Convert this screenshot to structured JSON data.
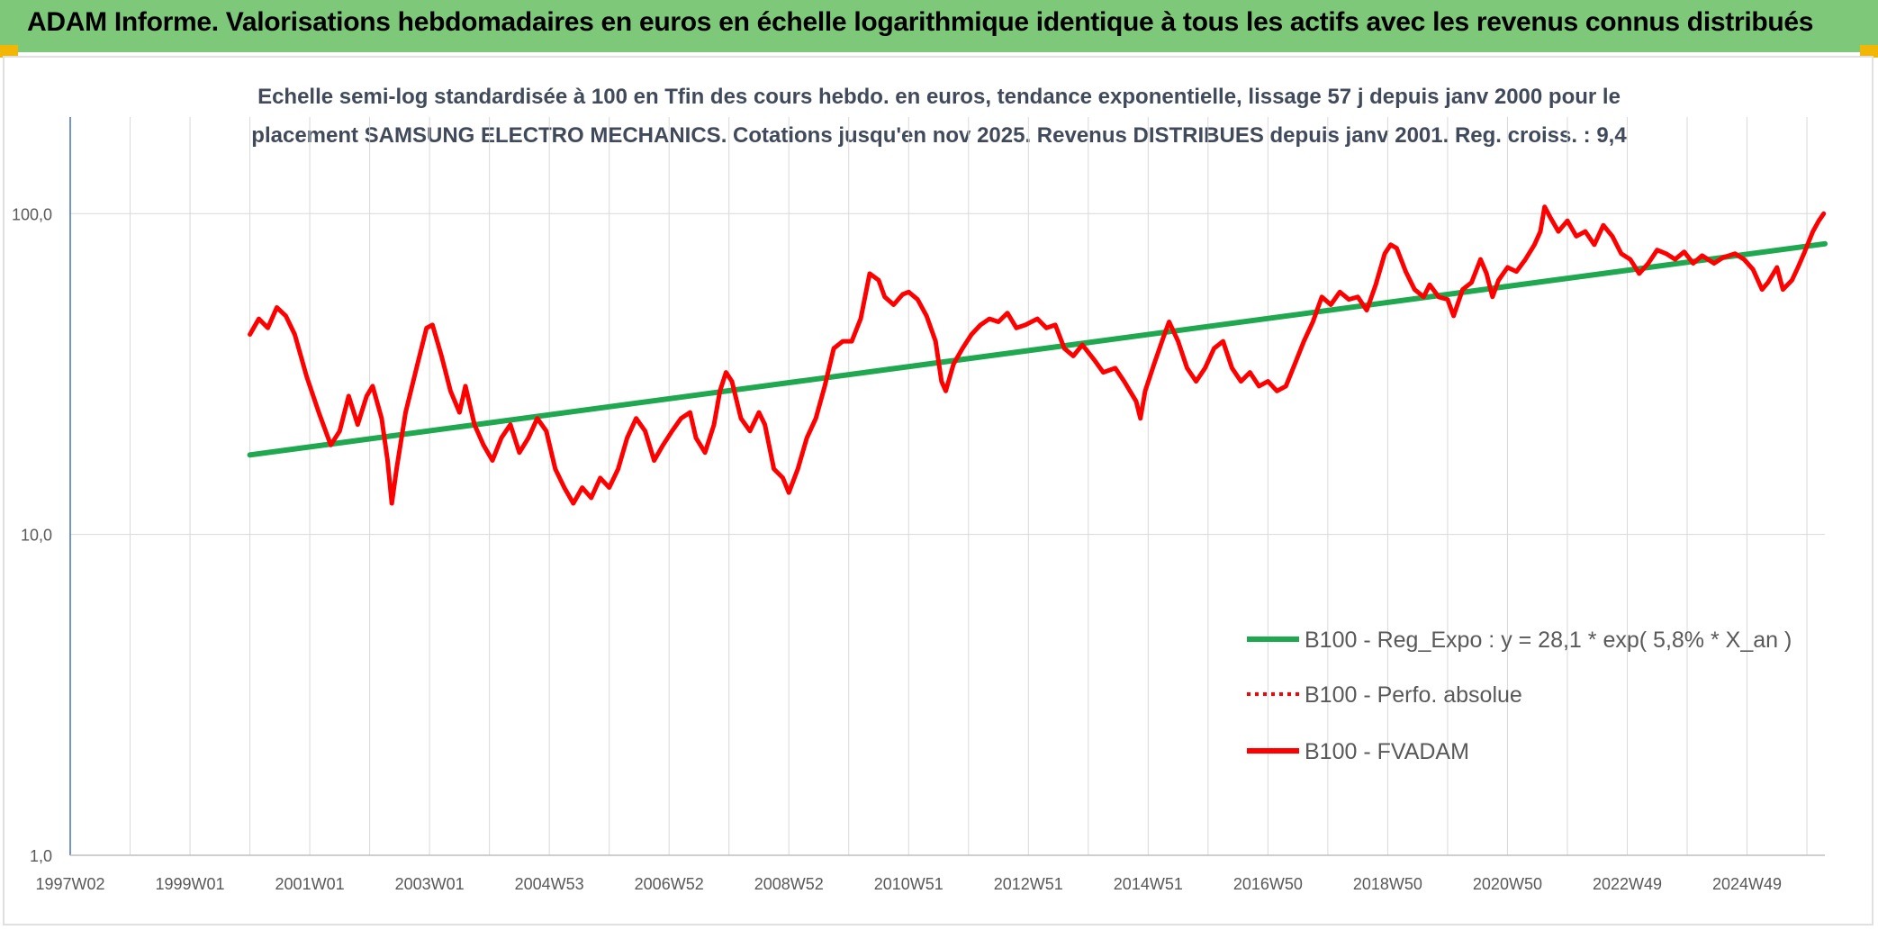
{
  "banner": {
    "title": "ADAM Informe. Valorisations hebdomadaires en euros en échelle logarithmique identique à tous les actifs avec les revenus connus distribués",
    "background": "#7ec87a"
  },
  "chart_data": {
    "type": "line",
    "title_line1": "Echelle semi-log standardisée à 100 en Tfin des cours hebdo. en euros, tendance exponentielle, lissage 57 j depuis janv 2000 pour le",
    "title_line2": "placement SAMSUNG ELECTRO MECHANICS. Cotations jusqu'en nov 2025. Revenus DISTRIBUES depuis janv 2001. Reg. croiss. : 9,4",
    "y_scale": "log",
    "ylim": [
      1,
      200
    ],
    "y_ticks": [
      {
        "value": 1,
        "label": "1,0"
      },
      {
        "value": 10,
        "label": "10,0"
      },
      {
        "value": 100,
        "label": "100,0"
      }
    ],
    "x_domain": [
      1997.0,
      2026.3
    ],
    "x_ticks": [
      {
        "value": 1997.0,
        "label": "1997W02"
      },
      {
        "value": 1999.0,
        "label": "1999W01"
      },
      {
        "value": 2001.0,
        "label": "2001W01"
      },
      {
        "value": 2003.0,
        "label": "2003W01"
      },
      {
        "value": 2005.0,
        "label": "2004W53"
      },
      {
        "value": 2007.0,
        "label": "2006W52"
      },
      {
        "value": 2009.0,
        "label": "2008W52"
      },
      {
        "value": 2011.0,
        "label": "2010W51"
      },
      {
        "value": 2013.0,
        "label": "2012W51"
      },
      {
        "value": 2015.0,
        "label": "2014W51"
      },
      {
        "value": 2017.0,
        "label": "2016W50"
      },
      {
        "value": 2019.0,
        "label": "2018W50"
      },
      {
        "value": 2021.0,
        "label": "2020W50"
      },
      {
        "value": 2023.0,
        "label": "2022W49"
      },
      {
        "value": 2025.0,
        "label": "2024W49"
      }
    ],
    "grid": true,
    "legend_position": "bottom-right",
    "series": [
      {
        "name": "B100 - Reg_Expo : y = 28,1 * exp( 5,8% *  X_an )",
        "color": "#1fa84f",
        "style": "solid",
        "points": [
          [
            2000.0,
            17.7
          ],
          [
            2026.3,
            80.5
          ]
        ]
      },
      {
        "name": "B100 - Perfo. absolue",
        "color": "#ff0000",
        "style": "dotted",
        "points": []
      },
      {
        "name": "B100 - FVADAM",
        "color": "#ff0000",
        "style": "solid",
        "points": [
          [
            2000.0,
            42
          ],
          [
            2000.15,
            47
          ],
          [
            2000.3,
            44
          ],
          [
            2000.45,
            51
          ],
          [
            2000.6,
            48
          ],
          [
            2000.75,
            42
          ],
          [
            2000.95,
            31
          ],
          [
            2001.15,
            24
          ],
          [
            2001.35,
            19
          ],
          [
            2001.5,
            21
          ],
          [
            2001.65,
            27
          ],
          [
            2001.8,
            22
          ],
          [
            2001.95,
            27
          ],
          [
            2002.05,
            29
          ],
          [
            2002.2,
            23
          ],
          [
            2002.3,
            17
          ],
          [
            2002.37,
            12.5
          ],
          [
            2002.45,
            16
          ],
          [
            2002.6,
            24
          ],
          [
            2002.8,
            34
          ],
          [
            2002.95,
            44
          ],
          [
            2003.05,
            45
          ],
          [
            2003.2,
            36
          ],
          [
            2003.35,
            28
          ],
          [
            2003.5,
            24
          ],
          [
            2003.6,
            29
          ],
          [
            2003.75,
            22
          ],
          [
            2003.9,
            19
          ],
          [
            2004.05,
            17
          ],
          [
            2004.2,
            20
          ],
          [
            2004.35,
            22
          ],
          [
            2004.5,
            18
          ],
          [
            2004.65,
            20
          ],
          [
            2004.8,
            23
          ],
          [
            2004.95,
            21
          ],
          [
            2005.1,
            16
          ],
          [
            2005.25,
            14
          ],
          [
            2005.4,
            12.5
          ],
          [
            2005.55,
            14
          ],
          [
            2005.7,
            13
          ],
          [
            2005.85,
            15
          ],
          [
            2006.0,
            14
          ],
          [
            2006.15,
            16
          ],
          [
            2006.3,
            20
          ],
          [
            2006.45,
            23
          ],
          [
            2006.6,
            21
          ],
          [
            2006.75,
            17
          ],
          [
            2006.9,
            19
          ],
          [
            2007.05,
            21
          ],
          [
            2007.2,
            23
          ],
          [
            2007.35,
            24
          ],
          [
            2007.45,
            20
          ],
          [
            2007.6,
            18
          ],
          [
            2007.75,
            22
          ],
          [
            2007.85,
            28
          ],
          [
            2007.95,
            32
          ],
          [
            2008.05,
            30
          ],
          [
            2008.2,
            23
          ],
          [
            2008.35,
            21
          ],
          [
            2008.5,
            24
          ],
          [
            2008.6,
            22
          ],
          [
            2008.75,
            16
          ],
          [
            2008.9,
            15
          ],
          [
            2009.0,
            13.5
          ],
          [
            2009.15,
            16
          ],
          [
            2009.3,
            20
          ],
          [
            2009.45,
            23
          ],
          [
            2009.6,
            29
          ],
          [
            2009.75,
            38
          ],
          [
            2009.9,
            40
          ],
          [
            2010.05,
            40
          ],
          [
            2010.2,
            47
          ],
          [
            2010.35,
            65
          ],
          [
            2010.5,
            62
          ],
          [
            2010.6,
            55
          ],
          [
            2010.75,
            52
          ],
          [
            2010.9,
            56
          ],
          [
            2011.0,
            57
          ],
          [
            2011.15,
            54
          ],
          [
            2011.3,
            48
          ],
          [
            2011.45,
            40
          ],
          [
            2011.55,
            30
          ],
          [
            2011.62,
            28
          ],
          [
            2011.75,
            34
          ],
          [
            2011.9,
            38
          ],
          [
            2012.05,
            42
          ],
          [
            2012.2,
            45
          ],
          [
            2012.35,
            47
          ],
          [
            2012.5,
            46
          ],
          [
            2012.65,
            49
          ],
          [
            2012.8,
            44
          ],
          [
            2012.95,
            45
          ],
          [
            2013.15,
            47
          ],
          [
            2013.3,
            44
          ],
          [
            2013.45,
            45
          ],
          [
            2013.6,
            38
          ],
          [
            2013.75,
            36
          ],
          [
            2013.9,
            39
          ],
          [
            2014.1,
            35
          ],
          [
            2014.25,
            32
          ],
          [
            2014.45,
            33
          ],
          [
            2014.6,
            30
          ],
          [
            2014.8,
            26
          ],
          [
            2014.87,
            23
          ],
          [
            2014.95,
            28
          ],
          [
            2015.1,
            34
          ],
          [
            2015.25,
            41
          ],
          [
            2015.35,
            46
          ],
          [
            2015.5,
            40
          ],
          [
            2015.65,
            33
          ],
          [
            2015.8,
            30
          ],
          [
            2015.95,
            33
          ],
          [
            2016.1,
            38
          ],
          [
            2016.25,
            40
          ],
          [
            2016.4,
            33
          ],
          [
            2016.55,
            30
          ],
          [
            2016.7,
            32
          ],
          [
            2016.85,
            29
          ],
          [
            2017.0,
            30
          ],
          [
            2017.15,
            28
          ],
          [
            2017.3,
            29
          ],
          [
            2017.45,
            34
          ],
          [
            2017.6,
            40
          ],
          [
            2017.75,
            46
          ],
          [
            2017.9,
            55
          ],
          [
            2018.05,
            52
          ],
          [
            2018.2,
            57
          ],
          [
            2018.35,
            54
          ],
          [
            2018.5,
            55
          ],
          [
            2018.65,
            50
          ],
          [
            2018.8,
            60
          ],
          [
            2018.95,
            75
          ],
          [
            2019.05,
            80
          ],
          [
            2019.15,
            78
          ],
          [
            2019.3,
            66
          ],
          [
            2019.45,
            58
          ],
          [
            2019.6,
            55
          ],
          [
            2019.7,
            60
          ],
          [
            2019.85,
            55
          ],
          [
            2020.0,
            54
          ],
          [
            2020.1,
            48
          ],
          [
            2020.25,
            58
          ],
          [
            2020.4,
            61
          ],
          [
            2020.55,
            72
          ],
          [
            2020.65,
            65
          ],
          [
            2020.75,
            55
          ],
          [
            2020.85,
            62
          ],
          [
            2021.0,
            68
          ],
          [
            2021.15,
            66
          ],
          [
            2021.3,
            72
          ],
          [
            2021.45,
            80
          ],
          [
            2021.55,
            88
          ],
          [
            2021.62,
            105
          ],
          [
            2021.72,
            97
          ],
          [
            2021.85,
            88
          ],
          [
            2022.0,
            95
          ],
          [
            2022.15,
            85
          ],
          [
            2022.3,
            88
          ],
          [
            2022.45,
            80
          ],
          [
            2022.6,
            92
          ],
          [
            2022.75,
            85
          ],
          [
            2022.9,
            75
          ],
          [
            2023.05,
            72
          ],
          [
            2023.2,
            65
          ],
          [
            2023.35,
            70
          ],
          [
            2023.5,
            77
          ],
          [
            2023.65,
            75
          ],
          [
            2023.8,
            72
          ],
          [
            2023.95,
            76
          ],
          [
            2024.1,
            70
          ],
          [
            2024.25,
            74
          ],
          [
            2024.45,
            70
          ],
          [
            2024.6,
            73
          ],
          [
            2024.8,
            75
          ],
          [
            2024.95,
            72
          ],
          [
            2025.1,
            67
          ],
          [
            2025.25,
            58
          ],
          [
            2025.35,
            61
          ],
          [
            2025.5,
            68
          ],
          [
            2025.6,
            58
          ],
          [
            2025.75,
            62
          ],
          [
            2025.85,
            68
          ],
          [
            2025.95,
            75
          ],
          [
            2026.1,
            88
          ],
          [
            2026.2,
            95
          ],
          [
            2026.28,
            100
          ]
        ]
      }
    ]
  }
}
